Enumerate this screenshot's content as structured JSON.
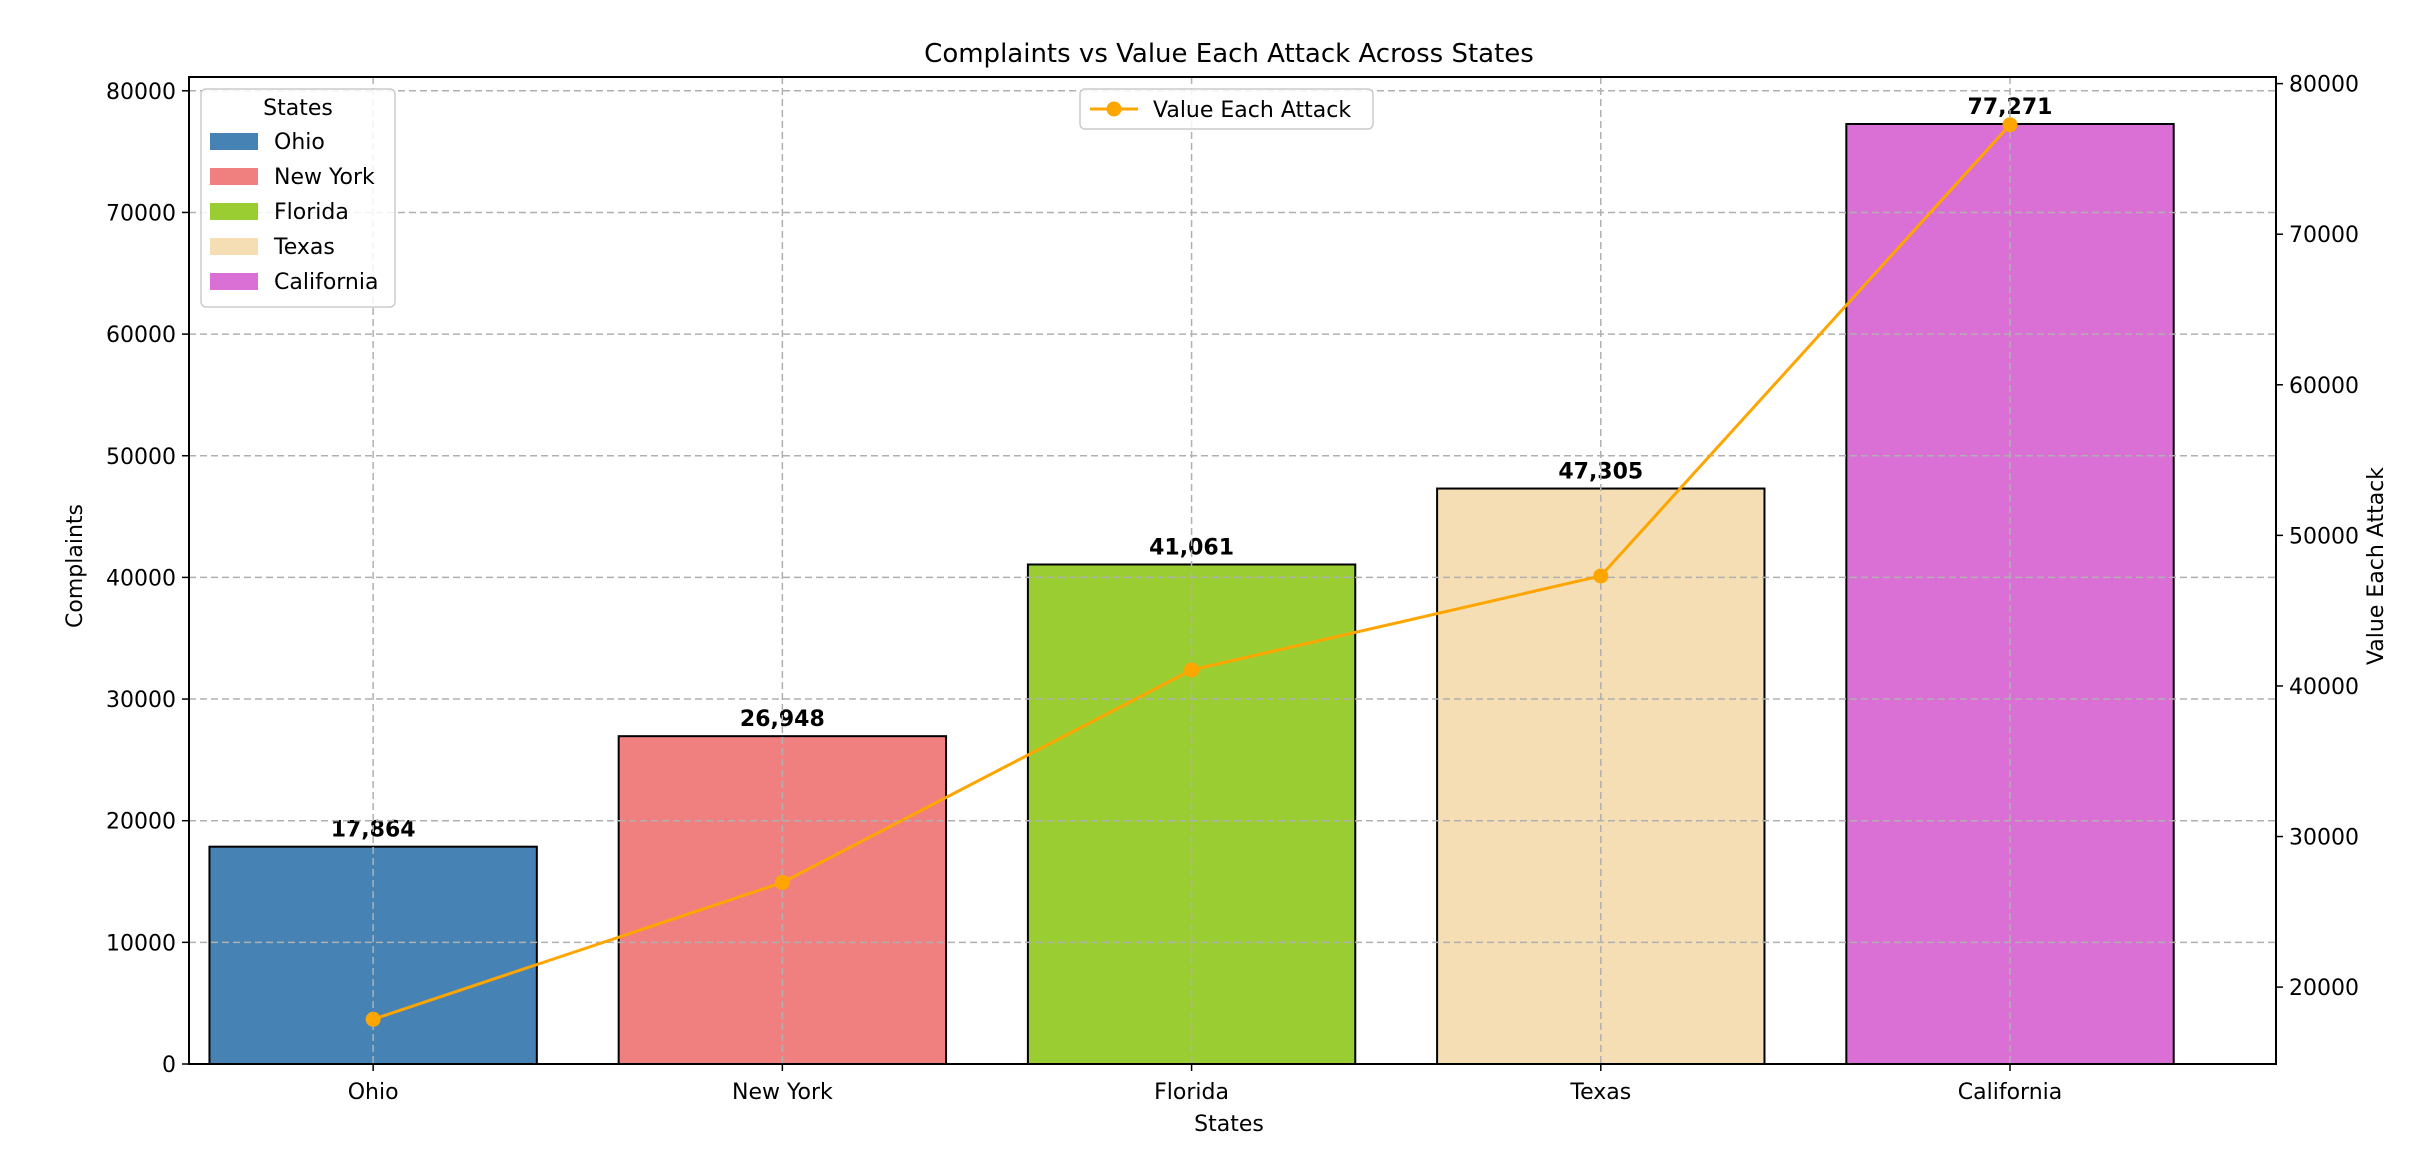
{
  "chart_data": {
    "type": "bar",
    "title": "Complaints vs Value Each Attack Across States",
    "xlabel": "States",
    "ylabel": "Complaints",
    "ylabel_right": "Value Each Attack",
    "categories": [
      "Ohio",
      "New York",
      "Florida",
      "Texas",
      "California"
    ],
    "series": [
      {
        "name": "Complaints",
        "type": "bar",
        "axis": "left",
        "values": [
          17864,
          26948,
          41061,
          47305,
          77271
        ],
        "value_labels": [
          "17,864",
          "26,948",
          "41,061",
          "47,305",
          "77,271"
        ],
        "colors": [
          "#4682b4",
          "#f08080",
          "#9acd32",
          "#f5deb3",
          "#da70d6"
        ]
      },
      {
        "name": "Value Each Attack",
        "type": "line",
        "axis": "right",
        "values": [
          17864,
          26948,
          41061,
          47305,
          77271
        ],
        "color": "#ffa500"
      }
    ],
    "ylim": [
      0,
      81135
    ],
    "ylim_right": [
      14894,
      80440
    ],
    "yticks": [
      0,
      10000,
      20000,
      30000,
      40000,
      50000,
      60000,
      70000,
      80000
    ],
    "yticks_right": [
      20000,
      30000,
      40000,
      50000,
      60000,
      70000,
      80000
    ],
    "grid": true,
    "legend": {
      "title": "States",
      "placement": "top-left",
      "entries": [
        "Ohio",
        "New York",
        "Florida",
        "Texas",
        "California"
      ]
    },
    "line_legend": {
      "placement": "top-center",
      "entries": [
        "Value Each Attack"
      ]
    }
  }
}
